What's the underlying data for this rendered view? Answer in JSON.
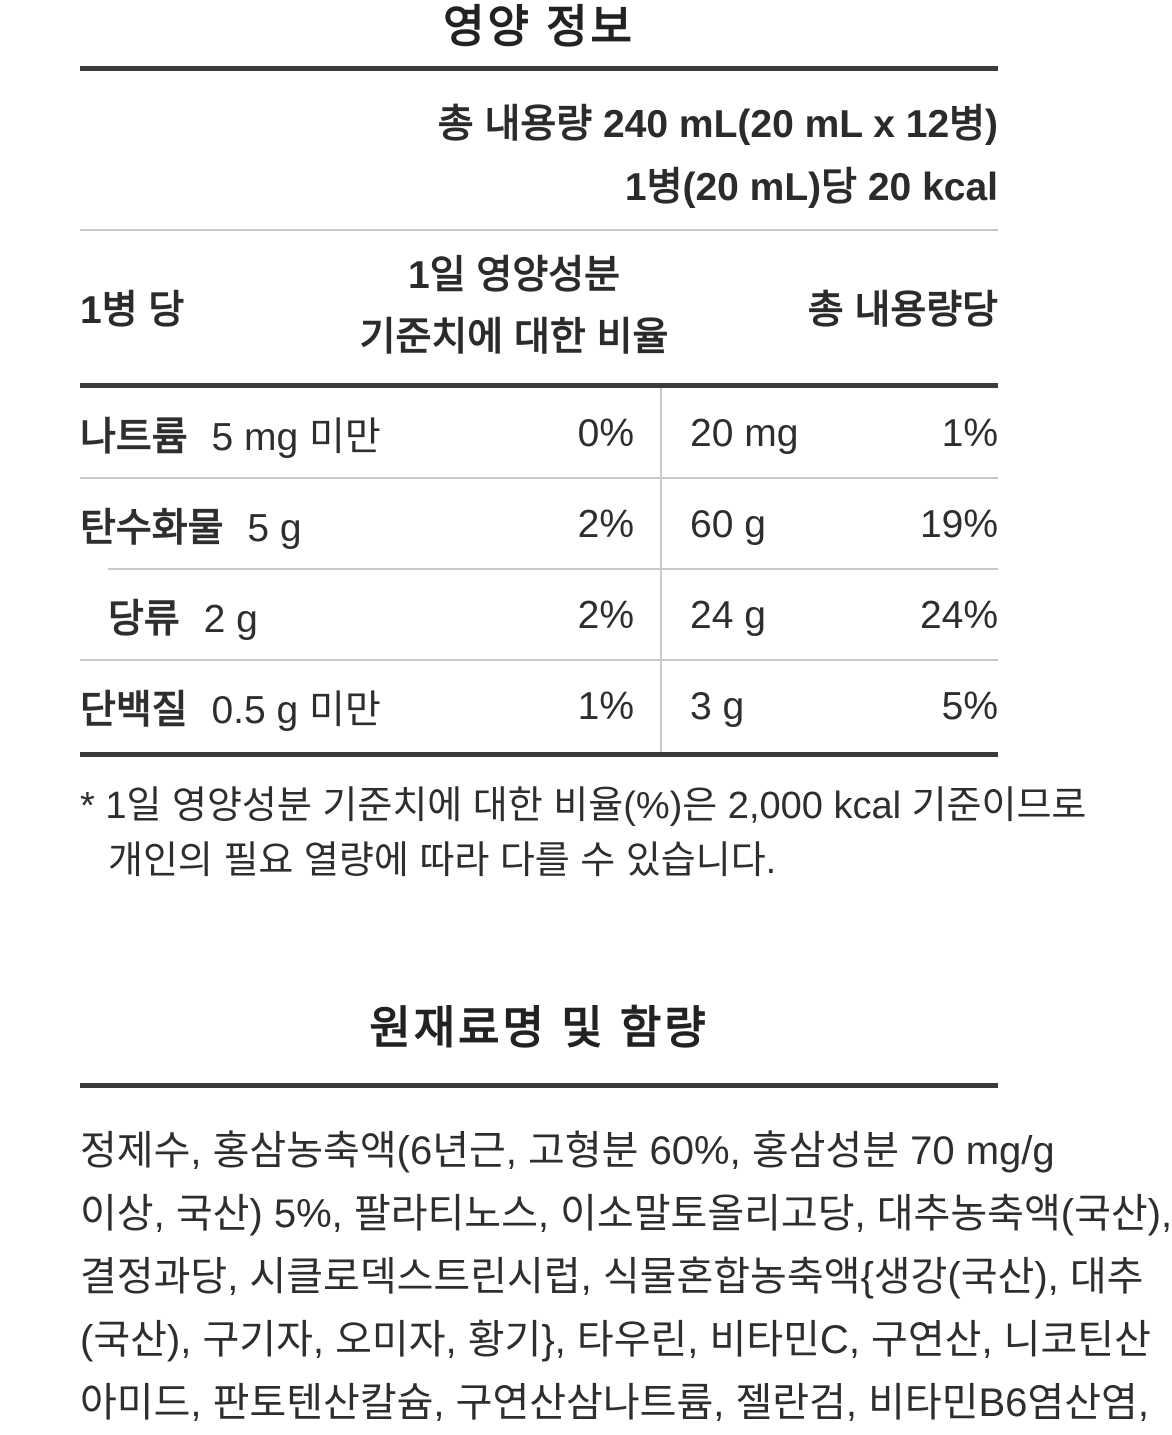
{
  "colors": {
    "text": "#2e2e2e",
    "rule_dark": "#3b3b3b",
    "rule_light": "#c9c9c9",
    "background": "#ffffff"
  },
  "nutrition": {
    "title": "영양 정보",
    "total_amount": "총 내용량 240 mL(20 mL x 12병)",
    "per_bottle_kcal": "1병(20 mL)당 20 kcal",
    "header": {
      "col_left": "1병 당",
      "col_center_line1": "1일 영양성분",
      "col_center_line2": "기준치에 대한 비율",
      "col_right": "총 내용량당"
    },
    "rows": [
      {
        "name": "나트륨",
        "amount": "5 mg 미만",
        "daily_pct": "0%",
        "total_amount": "20 mg",
        "total_pct": "1%"
      },
      {
        "name": "탄수화물",
        "amount": "5 g",
        "daily_pct": "2%",
        "total_amount": "60 g",
        "total_pct": "19%"
      },
      {
        "name": "당류",
        "amount": "2 g",
        "daily_pct": "2%",
        "total_amount": "24 g",
        "total_pct": "24%"
      },
      {
        "name": "단백질",
        "amount": "0.5 g 미만",
        "daily_pct": "1%",
        "total_amount": "3 g",
        "total_pct": "5%"
      }
    ],
    "footnote_line1": "* 1일 영양성분 기준치에 대한 비율(%)은 2,000 kcal 기준이므로",
    "footnote_line2": "개인의 필요 열량에 따라 다를 수 있습니다."
  },
  "ingredients": {
    "title": "원재료명 및 함량",
    "lines": [
      "정제수, 홍삼농축액(6년근, 고형분 60%, 홍삼성분 70 mg/g",
      "이상, 국산) 5%, 팔라티노스, 이소말토올리고당, 대추농축액(국산),",
      "결정과당, 시클로덱스트린시럽, 식물혼합농축액{생강(국산), 대추",
      "(국산), 구기자, 오미자, 황기}, 타우린, 비타민C, 구연산, 니코틴산",
      "아미드, 판토텐산칼슘, 구연산삼나트륨, 젤란검, 비타민B6염산염,"
    ]
  }
}
